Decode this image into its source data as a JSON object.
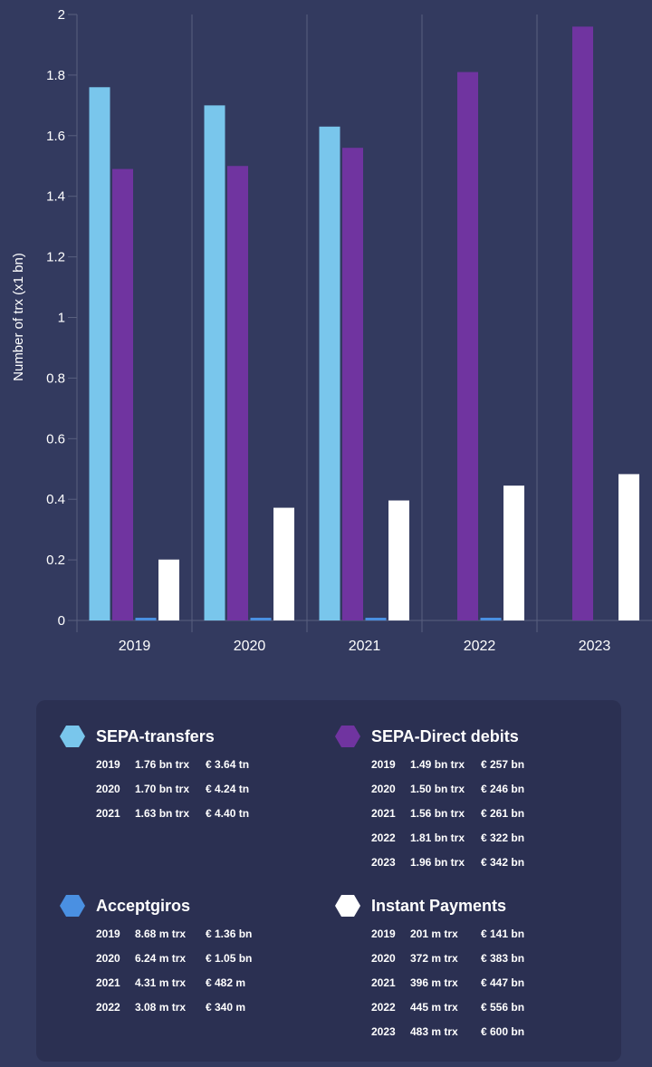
{
  "chart_data": {
    "type": "bar",
    "categories": [
      "2019",
      "2020",
      "2021",
      "2022",
      "2023"
    ],
    "ylabel": "Number of trx (x1 bn)",
    "ylim": [
      0,
      2
    ],
    "yticks": [
      "0",
      "0.2",
      "0.4",
      "0.6",
      "0.8",
      "1",
      "1.2",
      "1.4",
      "1.6",
      "1.8",
      "2"
    ],
    "grid": "vertical category separators",
    "series": [
      {
        "name": "SEPA-transfers",
        "color": "#79c6ec",
        "values": [
          1.76,
          1.7,
          1.63,
          null,
          null
        ]
      },
      {
        "name": "SEPA-Direct debits",
        "color": "#7034a0",
        "values": [
          1.49,
          1.5,
          1.56,
          1.81,
          1.96
        ]
      },
      {
        "name": "Acceptgiros",
        "color": "#4a90e2",
        "values": [
          0.00868,
          0.00624,
          0.00431,
          0.00308,
          null
        ]
      },
      {
        "name": "Instant Payments",
        "color": "#ffffff",
        "values": [
          0.201,
          0.372,
          0.396,
          0.445,
          0.483
        ]
      }
    ]
  },
  "legend": [
    {
      "title": "SEPA-transfers",
      "color": "#79c6ec",
      "rows": [
        [
          "2019",
          "1.76 bn trx",
          "€ 3.64 tn"
        ],
        [
          "2020",
          "1.70 bn trx",
          "€ 4.24 tn"
        ],
        [
          "2021",
          "1.63 bn trx",
          "€ 4.40 tn"
        ]
      ]
    },
    {
      "title": "SEPA-Direct debits",
      "color": "#7034a0",
      "rows": [
        [
          "2019",
          "1.49 bn trx",
          "€ 257 bn"
        ],
        [
          "2020",
          "1.50 bn trx",
          "€ 246 bn"
        ],
        [
          "2021",
          "1.56 bn trx",
          "€ 261 bn"
        ],
        [
          "2022",
          "1.81 bn trx",
          "€ 322 bn"
        ],
        [
          "2023",
          "1.96 bn trx",
          "€ 342 bn"
        ]
      ]
    },
    {
      "title": "Acceptgiros",
      "color": "#4a90e2",
      "rows": [
        [
          "2019",
          "8.68 m trx",
          "€ 1.36 bn"
        ],
        [
          "2020",
          "6.24 m trx",
          "€ 1.05 bn"
        ],
        [
          "2021",
          "4.31 m trx",
          "€ 482 m"
        ],
        [
          "2022",
          "3.08 m trx",
          "€ 340 m"
        ]
      ]
    },
    {
      "title": "Instant Payments",
      "color": "#ffffff",
      "rows": [
        [
          "2019",
          "201 m trx",
          "€ 141 bn"
        ],
        [
          "2020",
          "372 m trx",
          "€ 383 bn"
        ],
        [
          "2021",
          "396 m trx",
          "€ 447 bn"
        ],
        [
          "2022",
          "445 m trx",
          "€ 556 bn"
        ],
        [
          "2023",
          "483 m trx",
          "€ 600 bn"
        ]
      ]
    }
  ]
}
